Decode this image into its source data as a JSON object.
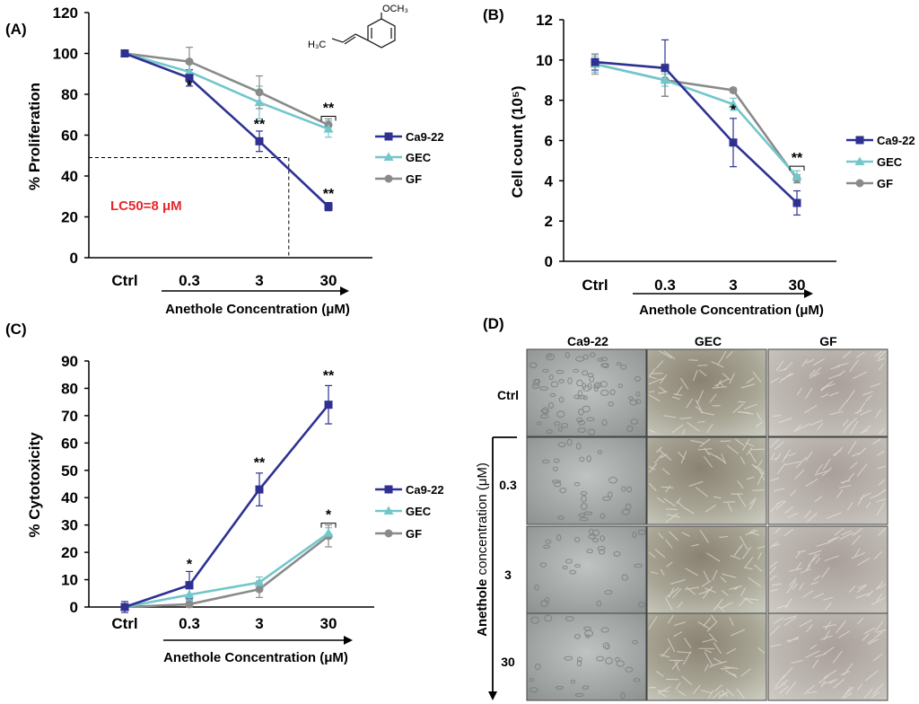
{
  "colors": {
    "Ca9-22": "#2e3192",
    "GEC": "#72c7ca",
    "GF": "#8a8a8a",
    "lc50": "#e8262a",
    "axis": "#000000"
  },
  "chart_data": [
    {
      "panel": "(A)",
      "type": "line",
      "categories": [
        "Ctrl",
        "0.3",
        "3",
        "30"
      ],
      "ylabel": "% Proliferation",
      "xlabel": "Anethole Concentration (μM)",
      "ylim": [
        0,
        120
      ],
      "yticks": [
        0,
        20,
        40,
        60,
        80,
        100,
        120
      ],
      "grid": false,
      "legend": "right",
      "series": [
        {
          "name": "Ca9-22",
          "marker": "square",
          "values": [
            100,
            88,
            57,
            25
          ],
          "errors": [
            1,
            4,
            5,
            2
          ]
        },
        {
          "name": "GEC",
          "marker": "triangle",
          "values": [
            100,
            91,
            76,
            63
          ],
          "errors": [
            1,
            4,
            8,
            4
          ]
        },
        {
          "name": "GF",
          "marker": "circle",
          "values": [
            100,
            96,
            81,
            65
          ],
          "errors": [
            1,
            7,
            8,
            3
          ]
        }
      ],
      "annotations": [
        {
          "category": "0.3",
          "text": "*",
          "y": 82
        },
        {
          "category": "3",
          "text": "**",
          "y": 63
        },
        {
          "category": "30",
          "text": "**",
          "y": 29
        },
        {
          "category": "30",
          "text": "**",
          "y": 71,
          "bracket": true
        }
      ],
      "lc50_label": "LC50=8 μM",
      "lc50": {
        "y": 49,
        "x_conc": 8
      },
      "structure": {
        "left_label": "H₃C",
        "right_label": "OCH₃"
      }
    },
    {
      "panel": "(B)",
      "type": "line",
      "categories": [
        "Ctrl",
        "0.3",
        "3",
        "30"
      ],
      "ylabel": "Cell count  (10⁵)",
      "xlabel": "Anethole Concentration (μM)",
      "ylim": [
        0,
        12
      ],
      "yticks": [
        0,
        2,
        4,
        6,
        8,
        10,
        12
      ],
      "grid": false,
      "legend": "right",
      "series": [
        {
          "name": "Ca9-22",
          "marker": "square",
          "values": [
            9.9,
            9.6,
            5.9,
            2.9
          ],
          "errors": [
            0.4,
            1.4,
            1.2,
            0.6
          ]
        },
        {
          "name": "GEC",
          "marker": "triangle",
          "values": [
            9.8,
            9.0,
            7.8,
            4.2
          ],
          "errors": [
            0.4,
            0.3,
            0.3,
            0.3
          ]
        },
        {
          "name": "GF",
          "marker": "circle",
          "values": [
            9.8,
            9.0,
            8.5,
            4.1
          ],
          "errors": [
            0.5,
            0.8,
            0.1,
            0.2
          ]
        }
      ],
      "annotations": [
        {
          "category": "3",
          "text": "*",
          "y": 7.3
        },
        {
          "category": "30",
          "text": "**",
          "y": 4.9,
          "bracket": true
        }
      ]
    },
    {
      "panel": "(C)",
      "type": "line",
      "categories": [
        "Ctrl",
        "0.3",
        "3",
        "30"
      ],
      "ylabel": "% Cytotoxicity",
      "xlabel": "Anethole Concentration (μM)",
      "ylim": [
        0,
        90
      ],
      "yticks": [
        0,
        10,
        20,
        30,
        40,
        50,
        60,
        70,
        80,
        90
      ],
      "grid": false,
      "legend": "right",
      "series": [
        {
          "name": "Ca9-22",
          "marker": "square",
          "values": [
            0,
            8,
            43,
            74
          ],
          "errors": [
            2,
            5,
            6,
            7
          ]
        },
        {
          "name": "GEC",
          "marker": "triangle",
          "values": [
            0,
            4.5,
            9,
            27
          ],
          "errors": [
            1,
            2,
            2,
            2
          ]
        },
        {
          "name": "GF",
          "marker": "circle",
          "values": [
            0,
            1,
            6.5,
            26
          ],
          "errors": [
            1,
            1,
            3,
            4
          ]
        }
      ],
      "annotations": [
        {
          "category": "0.3",
          "text": "*",
          "y": 14
        },
        {
          "category": "3",
          "text": "**",
          "y": 51
        },
        {
          "category": "30",
          "text": "**",
          "y": 83
        },
        {
          "category": "30",
          "text": "*",
          "y": 32,
          "bracket": true
        }
      ]
    }
  ],
  "panel_d": {
    "label": "(D)",
    "columns": [
      "Ca9-22",
      "GEC",
      "GF"
    ],
    "rows": [
      "Ctrl",
      "0.3",
      "3",
      "30"
    ],
    "side_label_main": "Anethole",
    "side_label_sub": " concentration (μM)"
  }
}
